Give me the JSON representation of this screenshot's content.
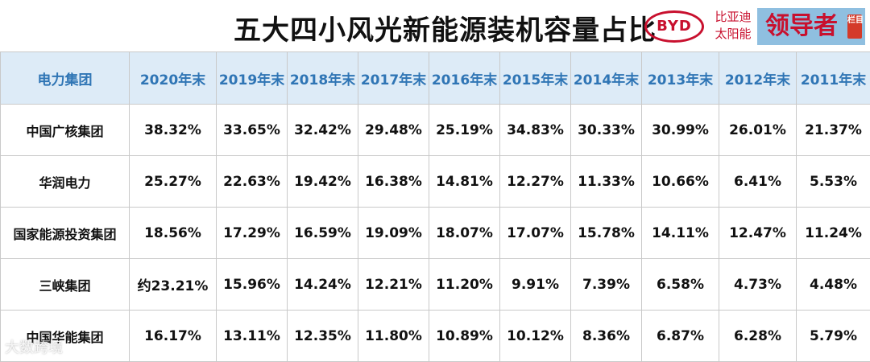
{
  "title": "五大四小风光新能源装机容量占比",
  "logo": {
    "byd": "BYD",
    "brand_line1": "比亚迪",
    "brand_line2": "太阳能",
    "leader": "领导者",
    "stamp": "栏目"
  },
  "watermark": "大数跨境",
  "chart_data": {
    "type": "table",
    "title": "五大四小风光新能源装机容量占比",
    "columns": [
      "电力集团",
      "2020年末",
      "2019年末",
      "2018年末",
      "2017年末",
      "2016年末",
      "2015年末",
      "2014年末",
      "2013年末",
      "2012年末",
      "2011年末"
    ],
    "rows": [
      [
        "中国广核集团",
        "38.32%",
        "33.65%",
        "32.42%",
        "29.48%",
        "25.19%",
        "34.83%",
        "30.33%",
        "30.99%",
        "26.01%",
        "21.37%"
      ],
      [
        "华润电力",
        "25.27%",
        "22.63%",
        "19.42%",
        "16.38%",
        "14.81%",
        "12.27%",
        "11.33%",
        "10.66%",
        "6.41%",
        "5.53%"
      ],
      [
        "国家能源投资集团",
        "18.56%",
        "17.29%",
        "16.59%",
        "19.09%",
        "18.07%",
        "17.07%",
        "15.78%",
        "14.11%",
        "12.47%",
        "11.24%"
      ],
      [
        "三峡集团",
        "约23.21%",
        "15.96%",
        "14.24%",
        "12.21%",
        "11.20%",
        "9.91%",
        "7.39%",
        "6.58%",
        "4.73%",
        "4.48%"
      ],
      [
        "中国华能集团",
        "16.17%",
        "13.11%",
        "12.35%",
        "11.80%",
        "10.89%",
        "10.12%",
        "8.36%",
        "6.87%",
        "6.28%",
        "5.79%"
      ]
    ]
  }
}
